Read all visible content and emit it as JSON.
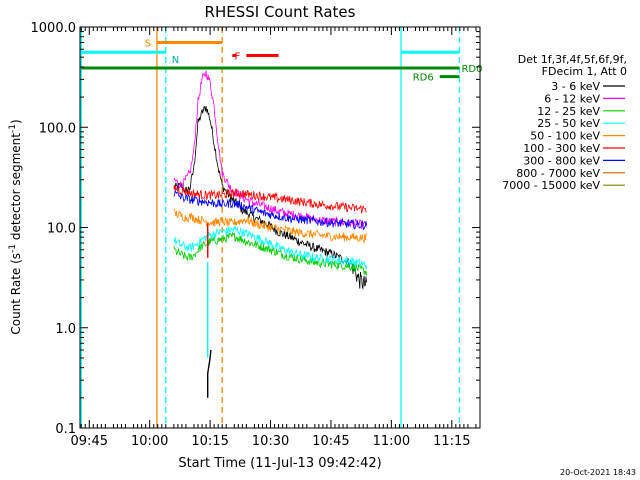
{
  "chart_data": {
    "type": "line",
    "title": "RHESSI Count Rates",
    "xlabel": "Start Time (11-Jul-13 09:42:42)",
    "ylabel_main": "Count Rate (s",
    "ylabel_sup": "-1",
    "ylabel_rest": " detector segment",
    "ylabel_sup2": "-1",
    "ylabel_close": ")",
    "yscale": "log",
    "ylim": [
      0.1,
      1000.0
    ],
    "yticks": [
      {
        "value": 1000.0,
        "label": "1000.0"
      },
      {
        "value": 100.0,
        "label": "100.0"
      },
      {
        "value": 10.0,
        "label": "10.0"
      },
      {
        "value": 1.0,
        "label": "1.0"
      },
      {
        "value": 0.1,
        "label": "0.1"
      }
    ],
    "xlim_minutes_after_0940": [
      2.7,
      102.0
    ],
    "xticks": [
      {
        "minute": 5,
        "label": "09:45"
      },
      {
        "minute": 20,
        "label": "10:00"
      },
      {
        "minute": 35,
        "label": "10:15"
      },
      {
        "minute": 50,
        "label": "10:30"
      },
      {
        "minute": 65,
        "label": "10:45"
      },
      {
        "minute": 80,
        "label": "11:00"
      },
      {
        "minute": 95,
        "label": "11:15"
      }
    ],
    "legend_header": [
      "Det 1f,3f,4f,5f,6f,9f,",
      "FDecim 1, Att 0"
    ],
    "series": [
      {
        "name": "3 - 6 keV",
        "color": "#000000",
        "segments": [
          [
            [
              26,
              25
            ],
            [
              27,
              25.5
            ],
            [
              28,
              26
            ],
            [
              29,
              23
            ],
            [
              30,
              25
            ],
            [
              31,
              40
            ],
            [
              32,
              110
            ],
            [
              33,
              140
            ],
            [
              34,
              160
            ],
            [
              35,
              120
            ],
            [
              36,
              70
            ],
            [
              37,
              40
            ],
            [
              38,
              26
            ],
            [
              40,
              20
            ],
            [
              43,
              15
            ],
            [
              46,
              12.5
            ],
            [
              49,
              11
            ],
            [
              52,
              9
            ],
            [
              55,
              8
            ],
            [
              58,
              7
            ],
            [
              61,
              6.2
            ],
            [
              65,
              5.5
            ],
            [
              70,
              4.4
            ],
            [
              72,
              3.0
            ],
            [
              74,
              2.6
            ]
          ],
          [
            [
              34.4,
              0.2
            ],
            [
              34.4,
              0.35
            ],
            [
              35,
              0.5
            ],
            [
              35.2,
              0.6
            ]
          ]
        ]
      },
      {
        "name": "6 - 12 keV",
        "color": "#ff00ff",
        "segments": [
          [
            [
              26,
              30
            ],
            [
              27,
              28
            ],
            [
              28,
              26
            ],
            [
              29,
              30
            ],
            [
              30,
              35
            ],
            [
              31,
              60
            ],
            [
              32,
              180
            ],
            [
              33,
              300
            ],
            [
              34,
              350
            ],
            [
              35,
              280
            ],
            [
              36,
              160
            ],
            [
              37,
              70
            ],
            [
              38,
              35
            ],
            [
              40,
              25
            ],
            [
              43,
              20
            ],
            [
              46,
              17.5
            ],
            [
              49,
              16
            ],
            [
              52,
              14.5
            ],
            [
              55,
              13.5
            ],
            [
              58,
              13
            ],
            [
              61,
              12
            ],
            [
              65,
              11.5
            ],
            [
              70,
              11
            ],
            [
              74,
              10.5
            ]
          ],
          [
            [
              34.4,
              5
            ],
            [
              34.4,
              9
            ]
          ]
        ]
      },
      {
        "name": "12 - 25 keV",
        "color": "#00cc00",
        "segments": [
          [
            [
              26,
              6
            ],
            [
              27,
              5.6
            ],
            [
              28,
              5.3
            ],
            [
              29,
              5.1
            ],
            [
              30,
              5
            ],
            [
              31,
              5.3
            ],
            [
              32,
              6
            ],
            [
              33,
              6.5
            ],
            [
              35,
              7.2
            ],
            [
              37,
              7.5
            ],
            [
              39,
              7.8
            ],
            [
              41,
              8.2
            ],
            [
              43,
              7.6
            ],
            [
              45,
              7
            ],
            [
              47,
              6.6
            ],
            [
              49,
              6.2
            ],
            [
              51,
              5.8
            ],
            [
              53,
              5.4
            ],
            [
              55,
              5.1
            ],
            [
              57,
              4.9
            ],
            [
              59,
              4.7
            ],
            [
              61,
              4.5
            ],
            [
              65,
              4.3
            ],
            [
              70,
              4.1
            ],
            [
              74,
              3.6
            ]
          ]
        ]
      },
      {
        "name": "25 - 50 keV",
        "color": "#00ffff",
        "segments": [
          [
            [
              26,
              7.5
            ],
            [
              27,
              7
            ],
            [
              28,
              6.6
            ],
            [
              29,
              6.4
            ],
            [
              30,
              6.2
            ],
            [
              31,
              6.6
            ],
            [
              32,
              7
            ],
            [
              33,
              7.6
            ],
            [
              35,
              8.4
            ],
            [
              37,
              8.9
            ],
            [
              39,
              9.2
            ],
            [
              41,
              9.6
            ],
            [
              43,
              9
            ],
            [
              45,
              8.4
            ],
            [
              47,
              7.8
            ],
            [
              49,
              7.2
            ],
            [
              51,
              6.6
            ],
            [
              53,
              6.1
            ],
            [
              55,
              5.7
            ],
            [
              57,
              5.4
            ],
            [
              59,
              5.2
            ],
            [
              61,
              5
            ],
            [
              65,
              4.8
            ],
            [
              70,
              4.6
            ],
            [
              74,
              4.2
            ]
          ],
          [
            [
              34.4,
              0.5
            ],
            [
              34.4,
              1.5
            ],
            [
              34.4,
              4.5
            ]
          ]
        ]
      },
      {
        "name": "50 - 100 keV",
        "color": "#ff8800",
        "segments": [
          [
            [
              26,
              14
            ],
            [
              27,
              13.5
            ],
            [
              28,
              13
            ],
            [
              29,
              12.5
            ],
            [
              30,
              12.8
            ],
            [
              31,
              12.5
            ],
            [
              32,
              12
            ],
            [
              34,
              11.5
            ],
            [
              36,
              11.2
            ],
            [
              38,
              11.5
            ],
            [
              40,
              11
            ],
            [
              42,
              11.5
            ],
            [
              44,
              12
            ],
            [
              46,
              11
            ],
            [
              48,
              10.5
            ],
            [
              50,
              10
            ],
            [
              52,
              9.7
            ],
            [
              54,
              9.4
            ],
            [
              56,
              9
            ],
            [
              58,
              8.8
            ],
            [
              60,
              8.6
            ],
            [
              63,
              8.3
            ],
            [
              66,
              8.1
            ],
            [
              70,
              8
            ],
            [
              74,
              7.8
            ]
          ]
        ]
      },
      {
        "name": "100 - 300 keV",
        "color": "#ff0000",
        "segments": [
          [
            [
              26,
              25
            ],
            [
              27,
              24
            ],
            [
              28,
              23
            ],
            [
              29,
              23
            ],
            [
              30,
              22
            ],
            [
              32,
              21.5
            ],
            [
              34,
              21
            ],
            [
              36,
              21
            ],
            [
              38,
              21
            ],
            [
              40,
              22
            ],
            [
              42,
              22
            ],
            [
              44,
              21.5
            ],
            [
              46,
              21
            ],
            [
              48,
              20.5
            ],
            [
              50,
              20
            ],
            [
              52,
              19.5
            ],
            [
              54,
              19
            ],
            [
              56,
              18.5
            ],
            [
              58,
              18
            ],
            [
              60,
              17.5
            ],
            [
              62,
              17
            ],
            [
              65,
              16.5
            ],
            [
              68,
              16
            ],
            [
              71,
              15.5
            ],
            [
              74,
              15.3
            ]
          ],
          [
            [
              34.4,
              5
            ],
            [
              34.4,
              11
            ]
          ]
        ]
      },
      {
        "name": "300 - 800 keV",
        "color": "#0000ff",
        "segments": [
          [
            [
              26,
              22
            ],
            [
              27,
              21
            ],
            [
              28,
              20
            ],
            [
              29,
              19.5
            ],
            [
              30,
              19
            ],
            [
              32,
              18.5
            ],
            [
              34,
              18
            ],
            [
              36,
              17.5
            ],
            [
              38,
              17
            ],
            [
              40,
              17.5
            ],
            [
              42,
              17
            ],
            [
              44,
              16
            ],
            [
              46,
              15
            ],
            [
              48,
              14
            ],
            [
              50,
              13.5
            ],
            [
              52,
              13
            ],
            [
              54,
              12.5
            ],
            [
              56,
              12.2
            ],
            [
              58,
              12
            ],
            [
              60,
              11.7
            ],
            [
              63,
              11.4
            ],
            [
              66,
              11.1
            ],
            [
              70,
              10.8
            ],
            [
              74,
              10.5
            ]
          ]
        ]
      },
      {
        "name": "800 - 7000 keV",
        "color": "#cc6600",
        "segments": []
      },
      {
        "name": "7000 - 15000 keV",
        "color": "#808000",
        "segments": []
      }
    ],
    "vertical_lines": [
      {
        "minute": 3.0,
        "color": "#00ffff",
        "dashed": false
      },
      {
        "minute": 21.8,
        "color": "#ff8800",
        "dashed": false
      },
      {
        "minute": 24.0,
        "color": "#00ffff",
        "dashed": true
      },
      {
        "minute": 38.0,
        "color": "#ff8800",
        "dashed": true
      },
      {
        "minute": 82.4,
        "color": "#00ffff",
        "dashed": false
      },
      {
        "minute": 96.9,
        "color": "#00ffff",
        "dashed": true
      }
    ],
    "top_bars": [
      {
        "label": "S",
        "color": "#ff8800",
        "x0": 21.8,
        "x1": 38.0,
        "value": 700,
        "label_color": "#ff8800",
        "label_side": "left"
      },
      {
        "label": "N",
        "color": "#00ffff",
        "x0": 3.0,
        "x1": 24.0,
        "value": 560,
        "label_color": "#00aaaa",
        "label_side": "right-below"
      },
      {
        "label": "",
        "color": "#00ffff",
        "x0": 82.4,
        "x1": 96.9,
        "value": 560,
        "label_color": "#00ffff",
        "label_side": "none"
      },
      {
        "label": "F",
        "color": "#ff0000",
        "x0": 44.0,
        "x1": 52.0,
        "value": 520,
        "label_color": "#ff0000",
        "label_side": "left"
      },
      {
        "label": "RD0",
        "color": "#008800",
        "x0": 3.0,
        "x1": 96.9,
        "value": 390,
        "label_color": "#008800",
        "label_side": "right"
      },
      {
        "label": "RD6",
        "color": "#008800",
        "x0": 92.0,
        "x1": 96.9,
        "value": 320,
        "label_color": "#008800",
        "label_side": "left"
      }
    ],
    "grid": false,
    "legend_position": "right"
  },
  "footer": {
    "timestamp": "20-Oct-2021 18:43"
  }
}
